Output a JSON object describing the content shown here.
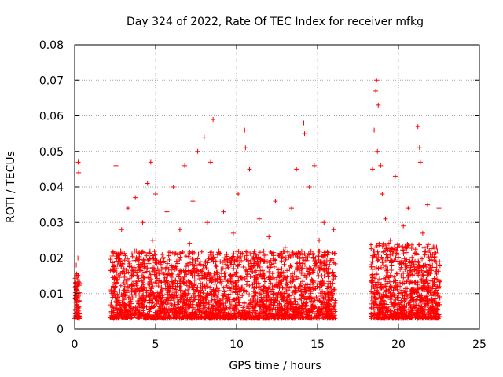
{
  "chart_data": {
    "type": "scatter",
    "title": "Day 324 of 2022, Rate Of TEC Index for receiver mfkg",
    "xlabel": "GPS time / hours",
    "ylabel": "ROTI / TECUs",
    "xlim": [
      0,
      25
    ],
    "ylim": [
      0,
      0.08
    ],
    "xticks": [
      0,
      5,
      10,
      15,
      20,
      25
    ],
    "xtick_labels": [
      "0",
      "5",
      "10",
      "15",
      "20",
      "25"
    ],
    "yticks": [
      0,
      0.01,
      0.02,
      0.03,
      0.04,
      0.05,
      0.06,
      0.07,
      0.08
    ],
    "ytick_labels": [
      "0",
      "0.01",
      "0.02",
      "0.03",
      "0.04",
      "0.05",
      "0.06",
      "0.07",
      "0.08"
    ],
    "grid": true,
    "marker": "+",
    "series": [
      {
        "name": "ROTI",
        "color": "#ff0000",
        "x": [
          0.05,
          0.08,
          0.1,
          0.12,
          0.15,
          0.18,
          0.2,
          0.22,
          0.25,
          0.1,
          0.2,
          0.3,
          0.25,
          0.28,
          2.3,
          2.5,
          2.55,
          2.6,
          2.7,
          2.75,
          2.9,
          3.1,
          3.3,
          3.35,
          3.5,
          3.7,
          3.75,
          3.9,
          4.2,
          4.3,
          4.5,
          4.7,
          4.75,
          4.8,
          5.0,
          5.2,
          5.4,
          5.7,
          5.8,
          6.1,
          6.3,
          6.5,
          6.8,
          7.0,
          7.1,
          7.3,
          7.6,
          7.9,
          8.0,
          8.2,
          8.4,
          8.55,
          8.6,
          8.9,
          9.2,
          9.5,
          9.8,
          10.1,
          10.5,
          10.55,
          10.8,
          11.1,
          11.4,
          11.7,
          12.0,
          12.4,
          12.7,
          13.0,
          13.4,
          13.7,
          14.0,
          14.15,
          14.2,
          14.5,
          14.8,
          15.1,
          15.4,
          15.7,
          16.0,
          18.4,
          18.5,
          18.6,
          18.65,
          18.7,
          18.75,
          18.9,
          19.0,
          19.2,
          19.5,
          19.8,
          20.1,
          20.3,
          20.6,
          20.9,
          21.2,
          21.3,
          21.35,
          21.5,
          21.8,
          22.1,
          22.4,
          22.5
        ],
        "y": [
          0.012,
          0.009,
          0.015,
          0.007,
          0.011,
          0.004,
          0.02,
          0.047,
          0.044,
          0.018,
          0.006,
          0.013,
          0.01,
          0.008,
          0.011,
          0.009,
          0.046,
          0.014,
          0.019,
          0.008,
          0.028,
          0.012,
          0.034,
          0.009,
          0.015,
          0.022,
          0.037,
          0.011,
          0.03,
          0.008,
          0.041,
          0.047,
          0.013,
          0.025,
          0.038,
          0.009,
          0.021,
          0.033,
          0.011,
          0.04,
          0.017,
          0.028,
          0.046,
          0.01,
          0.024,
          0.036,
          0.05,
          0.012,
          0.054,
          0.03,
          0.047,
          0.059,
          0.015,
          0.022,
          0.033,
          0.009,
          0.027,
          0.038,
          0.056,
          0.051,
          0.045,
          0.019,
          0.031,
          0.012,
          0.026,
          0.036,
          0.01,
          0.023,
          0.034,
          0.045,
          0.017,
          0.058,
          0.055,
          0.04,
          0.046,
          0.025,
          0.03,
          0.012,
          0.028,
          0.045,
          0.056,
          0.067,
          0.07,
          0.05,
          0.063,
          0.046,
          0.038,
          0.031,
          0.025,
          0.043,
          0.012,
          0.029,
          0.034,
          0.019,
          0.057,
          0.051,
          0.047,
          0.027,
          0.035,
          0.018,
          0.022,
          0.034
        ]
      }
    ],
    "dense_segments": [
      {
        "x_start": 0.0,
        "x_end": 0.3,
        "y_low": 0.003,
        "y_high": 0.016,
        "count": 70
      },
      {
        "x_start": 2.2,
        "x_end": 16.1,
        "y_low": 0.003,
        "y_high": 0.022,
        "count": 2600
      },
      {
        "x_start": 18.3,
        "x_end": 22.6,
        "y_low": 0.003,
        "y_high": 0.024,
        "count": 900
      }
    ]
  }
}
